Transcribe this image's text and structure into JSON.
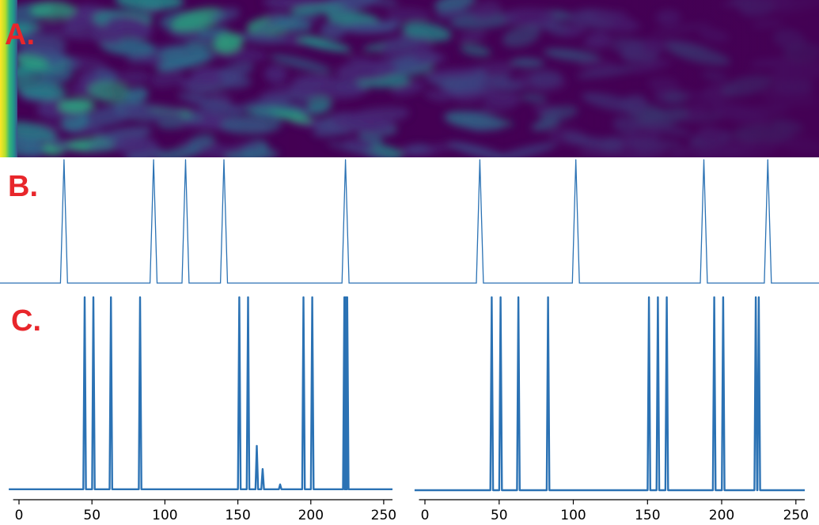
{
  "panel_labels": {
    "a": "A.",
    "b": "B.",
    "c": "C."
  },
  "colors": {
    "line": "#2b72b4",
    "panel_label": "#e8262b",
    "heatmap_bg": "#440154"
  },
  "chart_data": [
    {
      "id": "A",
      "type": "heatmap",
      "colormap": "viridis",
      "title": "",
      "xlabel": "",
      "ylabel": ""
    },
    {
      "id": "B",
      "type": "line",
      "title": "",
      "xlabel": "",
      "ylabel": "",
      "xlim": [
        0,
        256
      ],
      "ylim": [
        0,
        1
      ],
      "peaks_x": [
        20,
        48,
        58,
        70,
        108,
        150,
        180,
        220,
        240
      ],
      "peak_height": 1,
      "axes_visible": false
    },
    {
      "id": "C-left",
      "type": "line",
      "title": "",
      "xlabel": "",
      "ylabel": "",
      "xlim": [
        0,
        256
      ],
      "ylim": [
        0,
        1
      ],
      "xticks": [
        0,
        50,
        100,
        150,
        200,
        250
      ],
      "tick_labels": [
        "0",
        "50",
        "100",
        "150",
        "200",
        "250"
      ],
      "peaks": [
        {
          "x": 45,
          "y": 1.0
        },
        {
          "x": 51,
          "y": 1.0
        },
        {
          "x": 63,
          "y": 1.0
        },
        {
          "x": 83,
          "y": 1.0
        },
        {
          "x": 151,
          "y": 1.0
        },
        {
          "x": 157,
          "y": 1.0
        },
        {
          "x": 163,
          "y": 0.23
        },
        {
          "x": 167,
          "y": 0.11
        },
        {
          "x": 179,
          "y": 0.03
        },
        {
          "x": 195,
          "y": 1.0
        },
        {
          "x": 201,
          "y": 1.0
        },
        {
          "x": 223,
          "y": 1.0
        },
        {
          "x": 224,
          "y": 1.0
        },
        {
          "x": 225,
          "y": 1.0
        }
      ],
      "baseline": 0.005
    },
    {
      "id": "C-right",
      "type": "line",
      "title": "",
      "xlabel": "",
      "ylabel": "",
      "xlim": [
        0,
        256
      ],
      "ylim": [
        0,
        1
      ],
      "xticks": [
        0,
        50,
        100,
        150,
        200,
        250
      ],
      "tick_labels": [
        "0",
        "50",
        "100",
        "150",
        "200",
        "250"
      ],
      "peaks": [
        {
          "x": 45,
          "y": 1.0
        },
        {
          "x": 51,
          "y": 1.0
        },
        {
          "x": 63,
          "y": 1.0
        },
        {
          "x": 83,
          "y": 1.0
        },
        {
          "x": 151,
          "y": 1.0
        },
        {
          "x": 157,
          "y": 1.0
        },
        {
          "x": 163,
          "y": 1.0
        },
        {
          "x": 195,
          "y": 1.0
        },
        {
          "x": 201,
          "y": 1.0
        },
        {
          "x": 223,
          "y": 1.0
        },
        {
          "x": 225,
          "y": 1.0
        }
      ],
      "baseline": 0.0
    }
  ]
}
